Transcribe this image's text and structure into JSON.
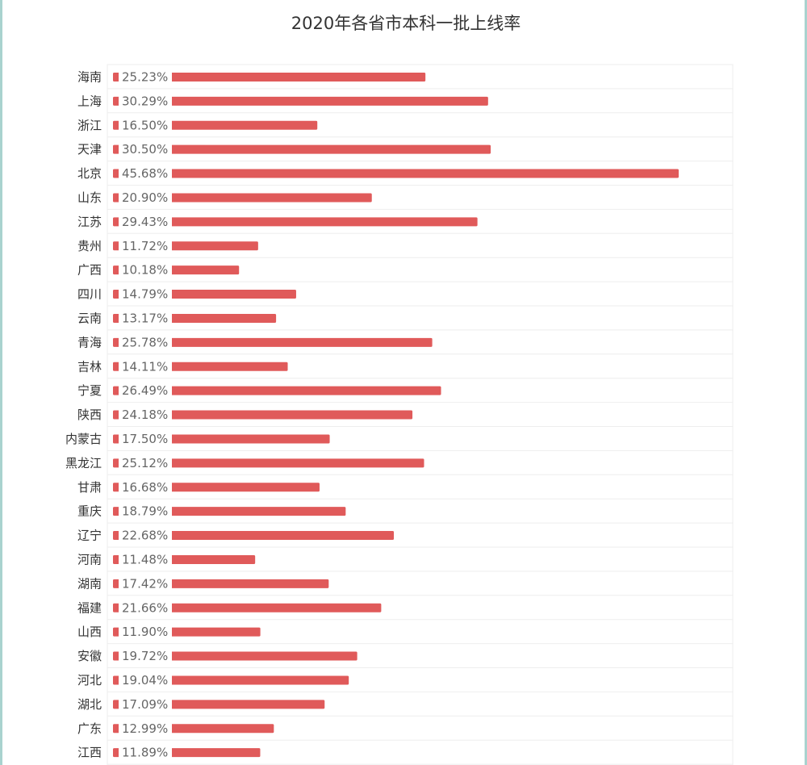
{
  "chart_data": {
    "type": "bar",
    "orientation": "horizontal",
    "title": "2020年各省市本科一批上线率",
    "xlabel": "",
    "ylabel": "",
    "xlim": [
      0,
      50
    ],
    "grid": true,
    "legend": "none",
    "bar_color": "#e05a5a",
    "categories": [
      "海南",
      "上海",
      "浙江",
      "天津",
      "北京",
      "山东",
      "江苏",
      "贵州",
      "广西",
      "四川",
      "云南",
      "青海",
      "吉林",
      "宁夏",
      "陕西",
      "内蒙古",
      "黑龙江",
      "甘肃",
      "重庆",
      "辽宁",
      "河南",
      "湖南",
      "福建",
      "山西",
      "安徽",
      "河北",
      "湖北",
      "广东",
      "江西"
    ],
    "values": [
      25.23,
      30.29,
      16.5,
      30.5,
      45.68,
      20.9,
      29.43,
      11.72,
      10.18,
      14.79,
      13.17,
      25.78,
      14.11,
      26.49,
      24.18,
      17.5,
      25.12,
      16.68,
      18.79,
      22.68,
      11.48,
      17.42,
      21.66,
      11.9,
      19.72,
      19.04,
      17.09,
      12.99,
      11.89
    ],
    "value_labels": [
      "25.23%",
      "30.29%",
      "16.50%",
      "30.50%",
      "45.68%",
      "20.90%",
      "29.43%",
      "11.72%",
      "10.18%",
      "14.79%",
      "13.17%",
      "25.78%",
      "14.11%",
      "26.49%",
      "24.18%",
      "17.50%",
      "25.12%",
      "16.68%",
      "18.79%",
      "22.68%",
      "11.48%",
      "17.42%",
      "21.66%",
      "11.90%",
      "19.72%",
      "19.04%",
      "17.09%",
      "12.99%",
      "11.89%"
    ]
  }
}
